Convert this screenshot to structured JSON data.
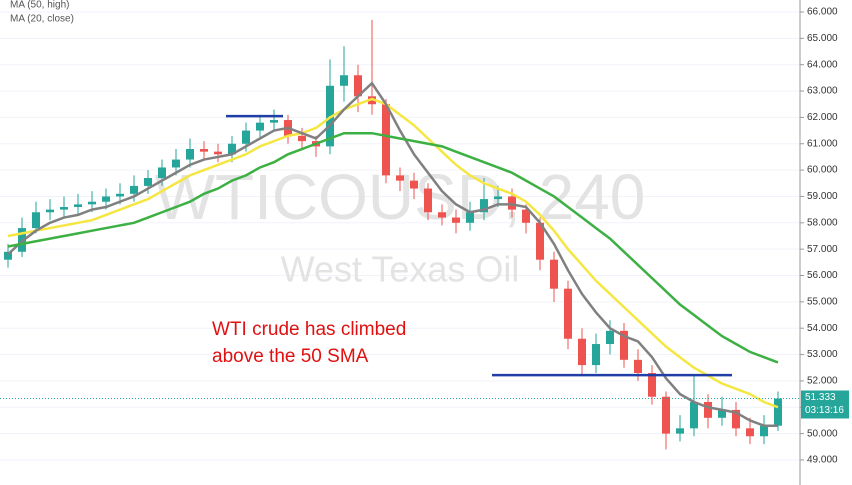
{
  "chart_data": {
    "type": "candlestick",
    "legend": [
      "MA (50, high)",
      "MA (20, close)"
    ],
    "watermark": "WTICOUSD, 240",
    "watermark_subtitle": "West Texas Oil",
    "annotation": [
      "WTI crude has climbed",
      "above the 50 SMA"
    ],
    "last_price": 51.333,
    "last_price_label": "51.333",
    "countdown": "03:13:16",
    "up_color": "#26a69a",
    "down_color": "#ef5350",
    "open": [
      56.6,
      56.9,
      57.8,
      58.4,
      58.5,
      58.6,
      58.7,
      58.8,
      59.0,
      59.1,
      59.4,
      59.7,
      60.1,
      60.4,
      60.8,
      60.7,
      60.6,
      61.0,
      61.5,
      61.8,
      61.9,
      61.3,
      61.1,
      60.9,
      63.2,
      63.6,
      62.8,
      62.5,
      59.8,
      59.6,
      59.3,
      58.4,
      58.2,
      58.0,
      58.4,
      58.9,
      59.0,
      58.5,
      58.0,
      56.6,
      55.5,
      53.6,
      52.6,
      53.4,
      53.9,
      52.8,
      52.3,
      51.4,
      50.0,
      50.2,
      51.2,
      50.6,
      50.9,
      50.2,
      49.9,
      50.3
    ],
    "high": [
      57.2,
      58.2,
      58.8,
      58.9,
      59.0,
      59.1,
      59.2,
      59.3,
      59.5,
      59.8,
      60.0,
      60.4,
      60.8,
      61.2,
      61.1,
      61.0,
      61.3,
      61.8,
      62.1,
      62.3,
      62.1,
      61.6,
      61.3,
      64.2,
      64.7,
      64.0,
      65.7,
      62.7,
      60.1,
      59.9,
      59.5,
      58.7,
      58.5,
      58.8,
      59.7,
      59.4,
      59.3,
      58.7,
      58.2,
      56.9,
      55.8,
      54.0,
      53.8,
      54.3,
      54.2,
      53.2,
      52.6,
      51.6,
      50.7,
      52.2,
      51.5,
      51.4,
      51.2,
      50.6,
      50.7,
      51.6
    ],
    "low": [
      56.3,
      56.7,
      57.6,
      58.1,
      58.2,
      58.3,
      58.4,
      58.5,
      58.7,
      58.8,
      59.1,
      59.4,
      59.8,
      60.1,
      60.4,
      60.3,
      60.3,
      60.7,
      61.2,
      61.5,
      61.0,
      60.8,
      60.5,
      60.6,
      62.6,
      62.2,
      62.1,
      59.5,
      59.2,
      58.9,
      58.1,
      57.9,
      57.6,
      57.7,
      58.1,
      58.6,
      58.2,
      57.6,
      56.2,
      55.0,
      53.2,
      52.2,
      52.3,
      53.0,
      52.5,
      52.0,
      51.1,
      49.4,
      49.7,
      49.9,
      50.2,
      50.3,
      49.9,
      49.6,
      49.6,
      50.1
    ],
    "close": [
      56.9,
      57.8,
      58.4,
      58.5,
      58.6,
      58.7,
      58.8,
      59.0,
      59.1,
      59.4,
      59.7,
      60.1,
      60.4,
      60.8,
      60.7,
      60.6,
      61.0,
      61.5,
      61.8,
      61.9,
      61.3,
      61.1,
      60.9,
      63.2,
      63.6,
      62.8,
      62.5,
      59.8,
      59.6,
      59.3,
      58.4,
      58.2,
      58.0,
      58.4,
      58.9,
      59.0,
      58.5,
      58.0,
      56.6,
      55.5,
      53.6,
      52.6,
      53.4,
      53.9,
      52.8,
      52.3,
      51.4,
      50.0,
      50.2,
      51.2,
      50.6,
      50.9,
      50.2,
      49.9,
      50.3,
      51.333
    ],
    "series": [
      {
        "color": "#f5e642",
        "values": [
          57.5,
          57.6,
          57.7,
          57.8,
          57.9,
          58.0,
          58.1,
          58.3,
          58.5,
          58.7,
          58.9,
          59.2,
          59.5,
          59.8,
          60.0,
          60.2,
          60.4,
          60.6,
          60.9,
          61.1,
          61.3,
          61.4,
          61.6,
          62.0,
          62.3,
          62.5,
          62.7,
          62.5,
          62.1,
          61.7,
          61.2,
          60.7,
          60.2,
          59.8,
          59.5,
          59.3,
          59.1,
          58.8,
          58.3,
          57.7,
          57.0,
          56.4,
          55.8,
          55.3,
          54.8,
          54.3,
          53.8,
          53.3,
          52.9,
          52.5,
          52.2,
          51.9,
          51.7,
          51.5,
          51.2,
          51.0
        ]
      },
      {
        "color": "#808080",
        "values": [
          56.8,
          57.3,
          57.7,
          58.0,
          58.2,
          58.3,
          58.5,
          58.6,
          58.8,
          59.0,
          59.3,
          59.6,
          59.9,
          60.2,
          60.4,
          60.5,
          60.6,
          60.9,
          61.2,
          61.5,
          61.6,
          61.4,
          61.2,
          61.7,
          62.3,
          62.8,
          63.3,
          62.5,
          61.5,
          60.6,
          59.9,
          59.2,
          58.7,
          58.4,
          58.5,
          58.7,
          58.7,
          58.6,
          58.0,
          57.2,
          56.2,
          55.3,
          54.6,
          54.0,
          53.7,
          53.5,
          52.9,
          52.1,
          51.5,
          51.2,
          51.0,
          50.9,
          50.8,
          50.5,
          50.3,
          50.3
        ]
      },
      {
        "color": "#3cb043",
        "values": [
          57.1,
          57.2,
          57.3,
          57.4,
          57.5,
          57.6,
          57.7,
          57.8,
          57.9,
          58.0,
          58.2,
          58.4,
          58.6,
          58.8,
          59.1,
          59.3,
          59.6,
          59.8,
          60.1,
          60.3,
          60.6,
          60.8,
          61.0,
          61.2,
          61.4,
          61.4,
          61.4,
          61.3,
          61.2,
          61.1,
          61.0,
          60.9,
          60.7,
          60.5,
          60.3,
          60.1,
          59.9,
          59.6,
          59.3,
          59.0,
          58.6,
          58.2,
          57.8,
          57.4,
          56.9,
          56.4,
          55.9,
          55.4,
          54.9,
          54.5,
          54.1,
          53.7,
          53.4,
          53.1,
          52.9,
          52.7
        ]
      }
    ],
    "levels": [
      62.05,
      52.22
    ],
    "level_color": "#1f3fa6",
    "ylim": [
      48.05,
      66.455
    ],
    "yticks": [
      {
        "value": 49,
        "label": "49.000"
      },
      {
        "value": 50,
        "label": "50.000"
      },
      {
        "value": 51,
        "label": "51.000"
      },
      {
        "value": 52,
        "label": "52.000"
      },
      {
        "value": 53,
        "label": "53.000"
      },
      {
        "value": 54,
        "label": "54.000"
      },
      {
        "value": 55,
        "label": "55.000"
      },
      {
        "value": 56,
        "label": "56.000"
      },
      {
        "value": 57,
        "label": "57.000"
      },
      {
        "value": 58,
        "label": "58.000"
      },
      {
        "value": 59,
        "label": "59.000"
      },
      {
        "value": 60,
        "label": "60.000"
      },
      {
        "value": 61,
        "label": "61.000"
      },
      {
        "value": 62,
        "label": "62.000"
      },
      {
        "value": 63,
        "label": "63.000"
      },
      {
        "value": 64,
        "label": "64.000"
      },
      {
        "value": 65,
        "label": "65.000"
      },
      {
        "value": 66,
        "label": "66.000"
      }
    ],
    "grid": true
  }
}
